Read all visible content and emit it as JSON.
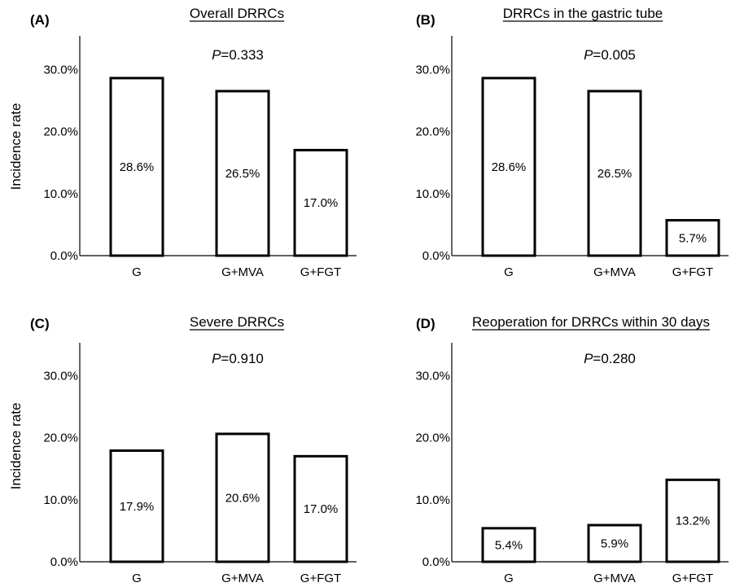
{
  "chart_data": [
    {
      "type": "bar",
      "panel": "(A)",
      "title": "Overall DRRCs",
      "p_prefix": "P",
      "p_value": "=0.333",
      "ylabel": "Incidence rate",
      "ylim": [
        0,
        35
      ],
      "yticks": [
        "0.0%",
        "10.0%",
        "20.0%",
        "30.0%"
      ],
      "categories": [
        "G",
        "G+MVA",
        "G+FGT"
      ],
      "values": [
        28.6,
        26.5,
        17.0
      ],
      "data_labels": [
        "28.6%",
        "26.5%",
        "17.0%"
      ]
    },
    {
      "type": "bar",
      "panel": "(B)",
      "title": "DRRCs in the gastric tube",
      "p_prefix": "P",
      "p_value": "=0.005",
      "ylabel": "",
      "ylim": [
        0,
        35
      ],
      "yticks": [
        "0.0%",
        "10.0%",
        "20.0%",
        "30.0%"
      ],
      "categories": [
        "G",
        "G+MVA",
        "G+FGT"
      ],
      "values": [
        28.6,
        26.5,
        5.7
      ],
      "data_labels": [
        "28.6%",
        "26.5%",
        "5.7%"
      ]
    },
    {
      "type": "bar",
      "panel": "(C)",
      "title": "Severe DRRCs",
      "p_prefix": "P",
      "p_value": "=0.910",
      "ylabel": "Incidence rate",
      "ylim": [
        0,
        35
      ],
      "yticks": [
        "0.0%",
        "10.0%",
        "20.0%",
        "30.0%"
      ],
      "categories": [
        "G",
        "G+MVA",
        "G+FGT"
      ],
      "values": [
        17.9,
        20.6,
        17.0
      ],
      "data_labels": [
        "17.9%",
        "20.6%",
        "17.0%"
      ]
    },
    {
      "type": "bar",
      "panel": "(D)",
      "title": "Reoperation for DRRCs within 30 days",
      "p_prefix": "P",
      "p_value": "=0.280",
      "ylabel": "",
      "ylim": [
        0,
        35
      ],
      "yticks": [
        "0.0%",
        "10.0%",
        "20.0%",
        "30.0%"
      ],
      "categories": [
        "G",
        "G+MVA",
        "G+FGT"
      ],
      "values": [
        5.4,
        5.9,
        13.2
      ],
      "data_labels": [
        "5.4%",
        "5.9%",
        "13.2%"
      ]
    }
  ]
}
